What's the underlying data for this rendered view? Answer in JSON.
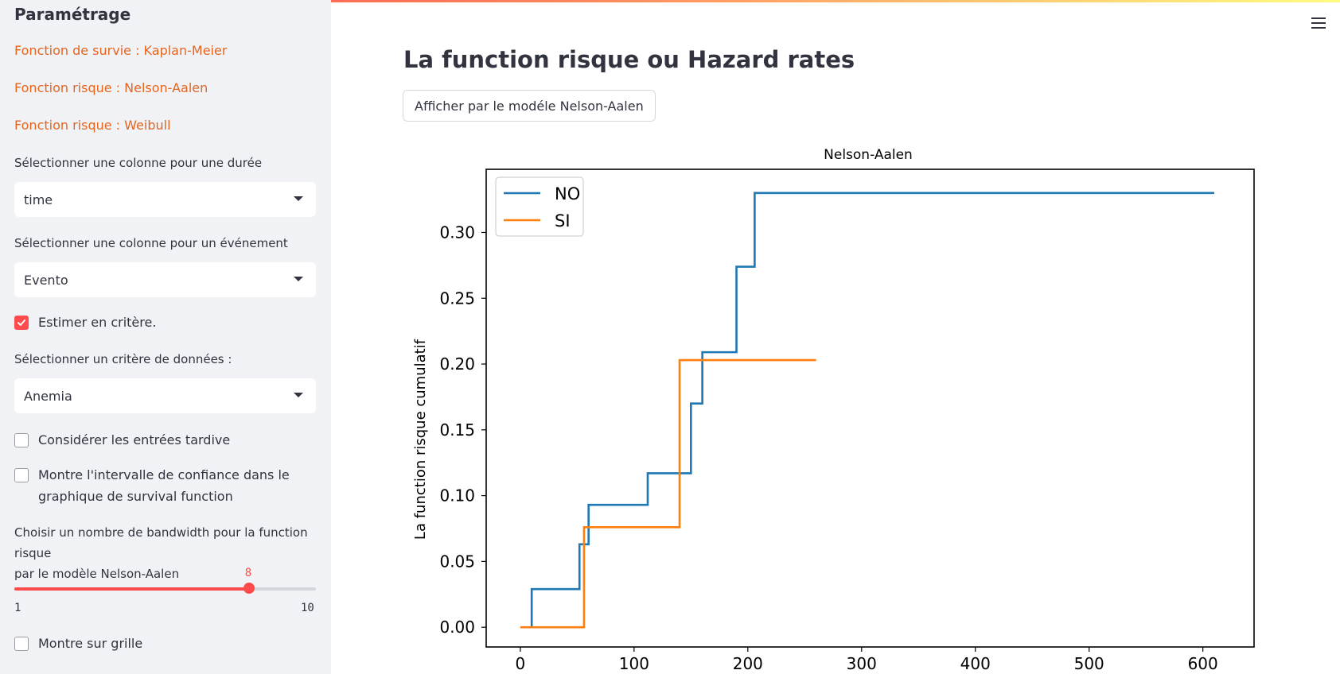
{
  "sidebar": {
    "title": "Paramétrage",
    "links": [
      "Fonction de survie : Kaplan-Meier",
      "Fonction risque : Nelson-Aalen",
      "Fonction risque : Weibull"
    ],
    "duration": {
      "label": "Sélectionner une colonne pour une durée",
      "value": "time"
    },
    "event": {
      "label": "Sélectionner une colonne pour un événement",
      "value": "Evento"
    },
    "estimate_checkbox": {
      "label": "Estimer en critère.",
      "checked": true
    },
    "criterion": {
      "label": "Sélectionner un critère de données :",
      "value": "Anemia"
    },
    "late_entries": {
      "label": "Considérer les entrées tardive",
      "checked": false
    },
    "confidence": {
      "label_line1": "Montre l'intervalle de confiance dans le",
      "label_line2": "graphique de survival function",
      "checked": false
    },
    "bandwidth": {
      "label_line1": "Choisir un nombre de bandwidth pour la function risque",
      "label_line2": "par le modèle Nelson-Aalen",
      "value": 8,
      "min": 1,
      "max": 10,
      "value_text": "8",
      "min_text": "1",
      "max_text": "10"
    },
    "grid_checkbox": {
      "label": "Montre sur grille",
      "checked": false
    }
  },
  "main": {
    "title": "La function risque ou Hazard rates",
    "button_label": "Afficher par le modéle Nelson-Aalen"
  },
  "colors": {
    "accent": "#ff4b4b",
    "link": "#e4661f",
    "series_no": "#1f77b4",
    "series_si": "#ff7f0e"
  },
  "chart_data": {
    "type": "line",
    "step": true,
    "title": "Nelson-Aalen",
    "xlabel": "",
    "ylabel": "La function risque cumulatif",
    "xlim": [
      -30,
      645
    ],
    "ylim": [
      -0.015,
      0.348
    ],
    "xticks": [
      0,
      100,
      200,
      300,
      400,
      500,
      600
    ],
    "yticks": [
      0.0,
      0.05,
      0.1,
      0.15,
      0.2,
      0.25,
      0.3
    ],
    "ytick_labels": [
      "0.00",
      "0.05",
      "0.10",
      "0.15",
      "0.20",
      "0.25",
      "0.30"
    ],
    "legend_position": "top-left",
    "grid": false,
    "series": [
      {
        "name": "NO",
        "color": "#1f77b4",
        "x": [
          10,
          10,
          52,
          52,
          60,
          60,
          112,
          112,
          150,
          150,
          160,
          160,
          190,
          190,
          206,
          206,
          610
        ],
        "y": [
          0.0,
          0.029,
          0.029,
          0.063,
          0.063,
          0.093,
          0.093,
          0.117,
          0.117,
          0.17,
          0.17,
          0.209,
          0.209,
          0.274,
          0.274,
          0.33,
          0.33
        ]
      },
      {
        "name": "SI",
        "color": "#ff7f0e",
        "x": [
          0,
          56,
          56,
          140,
          140,
          260
        ],
        "y": [
          0.0,
          0.0,
          0.076,
          0.076,
          0.203,
          0.203
        ]
      }
    ]
  }
}
